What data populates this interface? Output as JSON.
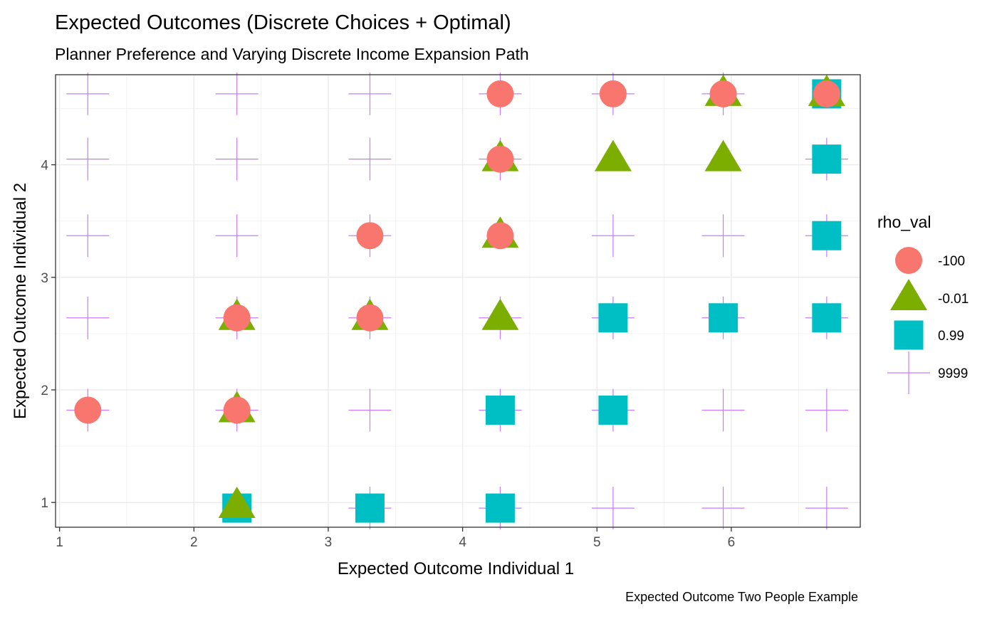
{
  "chart_data": {
    "type": "scatter",
    "title": "Expected Outcomes (Discrete Choices + Optimal)",
    "subtitle": "Planner Preference and Varying Discrete Income Expansion Path",
    "xlabel": "Expected Outcome Individual 1",
    "ylabel": "Expected Outcome Individual 2",
    "caption": "Expected Outcome Two People Example",
    "xlim": [
      0.97,
      6.96
    ],
    "ylim": [
      0.78,
      4.8
    ],
    "xticks": [
      1,
      2,
      3,
      4,
      5,
      6
    ],
    "yticks": [
      1,
      2,
      3,
      4
    ],
    "xtick_labels": [
      "1",
      "2",
      "3",
      "4",
      "5",
      "6"
    ],
    "ytick_labels": [
      "1",
      "2",
      "3",
      "4"
    ],
    "grid": true,
    "legend": {
      "title": "rho_val",
      "position": "right"
    },
    "series": [
      {
        "name": "-100",
        "shape": "circle",
        "color": "#F8766D",
        "points": [
          [
            1.21,
            1.82
          ],
          [
            2.32,
            1.82
          ],
          [
            2.32,
            2.64
          ],
          [
            3.31,
            2.64
          ],
          [
            3.31,
            3.37
          ],
          [
            4.28,
            3.37
          ],
          [
            4.28,
            4.05
          ],
          [
            4.28,
            4.63
          ],
          [
            5.12,
            4.63
          ],
          [
            5.94,
            4.63
          ],
          [
            6.71,
            4.63
          ]
        ]
      },
      {
        "name": "-0.01",
        "shape": "triangle",
        "color": "#7CAE00",
        "points": [
          [
            2.32,
            0.97
          ],
          [
            2.32,
            1.82
          ],
          [
            2.32,
            2.64
          ],
          [
            3.31,
            2.64
          ],
          [
            4.28,
            2.64
          ],
          [
            4.28,
            3.37
          ],
          [
            4.28,
            4.05
          ],
          [
            5.12,
            4.05
          ],
          [
            5.94,
            4.05
          ],
          [
            5.94,
            4.63
          ],
          [
            6.71,
            4.63
          ]
        ]
      },
      {
        "name": "0.99",
        "shape": "square",
        "color": "#00BFC4",
        "points": [
          [
            2.32,
            0.95
          ],
          [
            3.31,
            0.95
          ],
          [
            4.28,
            0.95
          ],
          [
            4.28,
            1.82
          ],
          [
            5.12,
            1.82
          ],
          [
            5.12,
            2.64
          ],
          [
            5.94,
            2.64
          ],
          [
            6.71,
            2.64
          ],
          [
            6.71,
            3.37
          ],
          [
            6.71,
            4.05
          ],
          [
            6.71,
            4.63
          ]
        ]
      },
      {
        "name": "9999",
        "shape": "cross",
        "color": "#C77CFF",
        "points": [
          [
            1.21,
            4.63
          ],
          [
            2.32,
            4.63
          ],
          [
            3.31,
            4.63
          ],
          [
            4.28,
            4.63
          ],
          [
            5.12,
            4.63
          ],
          [
            5.94,
            4.63
          ],
          [
            1.21,
            4.05
          ],
          [
            2.32,
            4.05
          ],
          [
            3.31,
            4.05
          ],
          [
            4.28,
            4.05
          ],
          [
            6.71,
            4.05
          ],
          [
            1.21,
            3.37
          ],
          [
            2.32,
            3.37
          ],
          [
            3.31,
            3.37
          ],
          [
            5.12,
            3.37
          ],
          [
            5.94,
            3.37
          ],
          [
            6.71,
            3.37
          ],
          [
            1.21,
            2.64
          ],
          [
            2.32,
            2.64
          ],
          [
            3.31,
            2.64
          ],
          [
            4.28,
            2.64
          ],
          [
            5.12,
            2.64
          ],
          [
            5.94,
            2.64
          ],
          [
            6.71,
            2.64
          ],
          [
            1.21,
            1.82
          ],
          [
            2.32,
            1.82
          ],
          [
            3.31,
            1.82
          ],
          [
            4.28,
            1.82
          ],
          [
            5.12,
            1.82
          ],
          [
            5.94,
            1.82
          ],
          [
            6.71,
            1.82
          ],
          [
            3.31,
            0.95
          ],
          [
            4.28,
            0.95
          ],
          [
            5.12,
            0.95
          ],
          [
            5.94,
            0.95
          ],
          [
            6.71,
            0.95
          ]
        ]
      }
    ]
  }
}
